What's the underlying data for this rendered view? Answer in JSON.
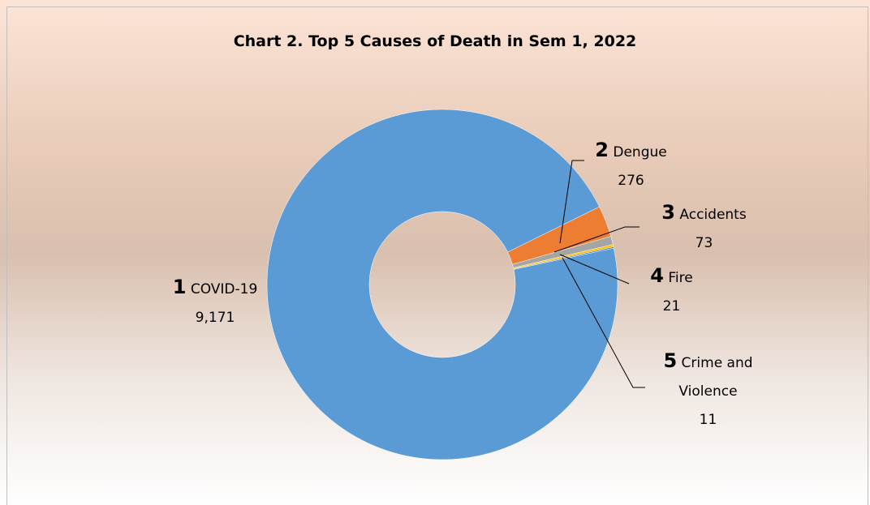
{
  "chart_data": {
    "type": "donut",
    "title": "Chart 2. Top 5 Causes of Death in Sem 1, 2022",
    "ranks": [
      "1",
      "2",
      "3",
      "4",
      "5"
    ],
    "categories": [
      "COVID-19",
      "Dengue",
      "Accidents",
      "Fire",
      "Crime and Violence"
    ],
    "values": [
      9171,
      276,
      73,
      21,
      11
    ],
    "value_labels": [
      "9,171",
      "276",
      "73",
      "21",
      "11"
    ],
    "colors": [
      "#5b9bd5",
      "#ed7d31",
      "#a5a5a5",
      "#ffc000",
      "#4472c4"
    ]
  }
}
